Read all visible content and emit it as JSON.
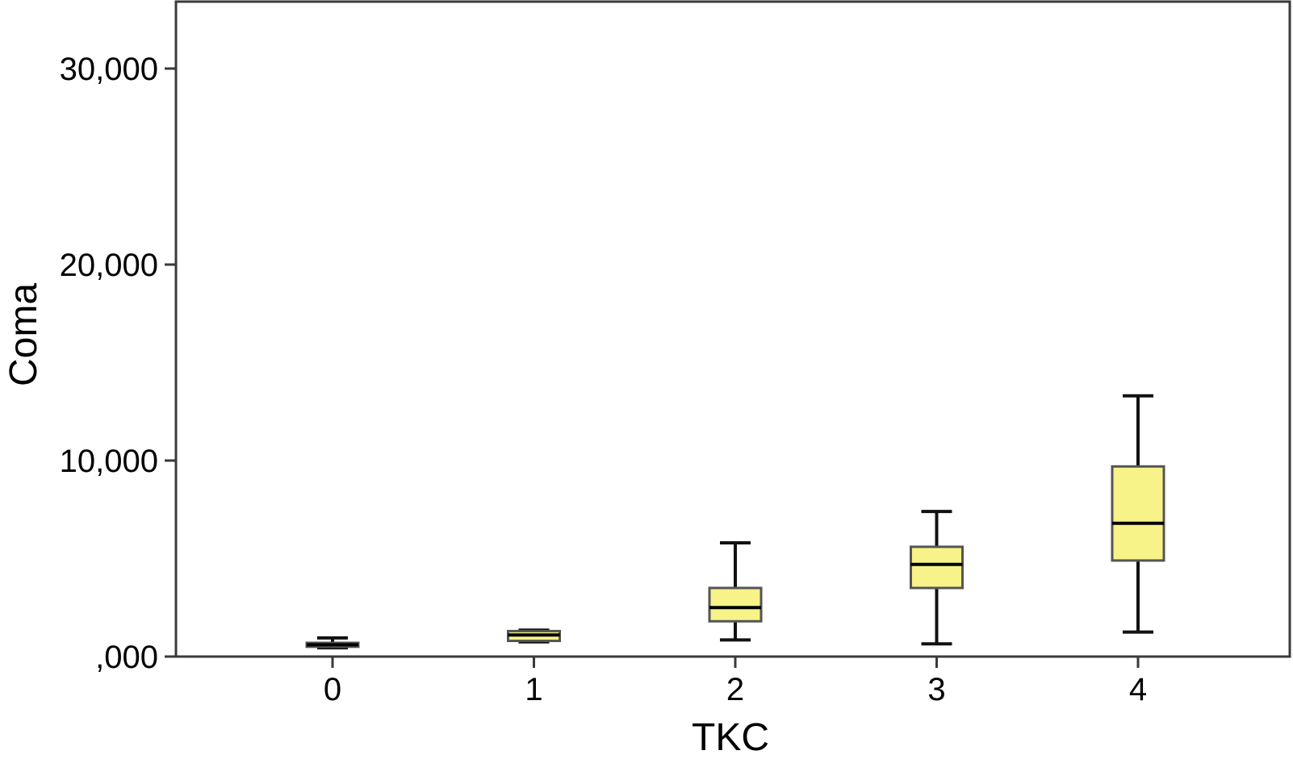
{
  "chart_data": {
    "type": "boxplot",
    "xlabel": "TKC",
    "ylabel": "Coma",
    "ylim": [
      0,
      33000
    ],
    "yticks": [
      {
        "value": 0,
        "label": ",000"
      },
      {
        "value": 10000,
        "label": "10,000"
      },
      {
        "value": 20000,
        "label": "20,000"
      },
      {
        "value": 30000,
        "label": "30,000"
      }
    ],
    "categories": [
      "0",
      "1",
      "2",
      "3",
      "4"
    ],
    "boxes": [
      {
        "category": "0",
        "whisker_low": 450,
        "q1": 500,
        "median": 600,
        "q3": 700,
        "whisker_high": 950
      },
      {
        "category": "1",
        "whisker_low": 750,
        "q1": 800,
        "median": 1100,
        "q3": 1300,
        "whisker_high": 1350
      },
      {
        "category": "2",
        "whisker_low": 850,
        "q1": 1800,
        "median": 2500,
        "q3": 3500,
        "whisker_high": 5800
      },
      {
        "category": "3",
        "whisker_low": 650,
        "q1": 3500,
        "median": 4700,
        "q3": 5600,
        "whisker_high": 7400
      },
      {
        "category": "4",
        "whisker_low": 1250,
        "q1": 4900,
        "median": 6800,
        "q3": 9700,
        "whisker_high": 13300
      }
    ],
    "box_fill": "#f7f389",
    "box_stroke": "#1a1a1a",
    "grid": false
  }
}
